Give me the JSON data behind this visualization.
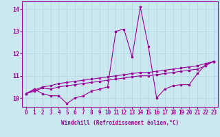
{
  "xlabel": "Windchill (Refroidissement éolien,°C)",
  "background_color": "#cbe8f0",
  "line_color": "#990099",
  "x": [
    0,
    1,
    2,
    3,
    4,
    5,
    6,
    7,
    8,
    9,
    10,
    11,
    12,
    13,
    14,
    15,
    16,
    17,
    18,
    19,
    20,
    21,
    22,
    23
  ],
  "line1": [
    10.2,
    10.4,
    10.2,
    10.1,
    10.1,
    9.75,
    10.0,
    10.1,
    10.3,
    10.4,
    10.5,
    13.0,
    13.1,
    11.85,
    14.1,
    12.3,
    10.0,
    10.4,
    10.55,
    10.6,
    10.6,
    11.1,
    11.5,
    11.65
  ],
  "line2": [
    10.2,
    10.3,
    10.45,
    10.4,
    10.5,
    10.55,
    10.6,
    10.65,
    10.7,
    10.75,
    10.8,
    10.85,
    10.9,
    10.95,
    11.0,
    11.0,
    11.05,
    11.1,
    11.15,
    11.2,
    11.25,
    11.3,
    11.45,
    11.65
  ],
  "line3": [
    10.2,
    10.35,
    10.5,
    10.55,
    10.65,
    10.7,
    10.75,
    10.8,
    10.85,
    10.9,
    10.95,
    11.0,
    11.05,
    11.1,
    11.15,
    11.15,
    11.2,
    11.25,
    11.3,
    11.35,
    11.4,
    11.45,
    11.55,
    11.65
  ],
  "ylim": [
    9.6,
    14.35
  ],
  "xlim": [
    -0.5,
    23.5
  ],
  "yticks": [
    10,
    11,
    12,
    13,
    14
  ],
  "xticks": [
    0,
    1,
    2,
    3,
    4,
    5,
    6,
    7,
    8,
    9,
    10,
    11,
    12,
    13,
    14,
    15,
    16,
    17,
    18,
    19,
    20,
    21,
    22,
    23
  ],
  "grid_color": "#b0d8e0",
  "tick_label_color": "#990099",
  "xlabel_fontsize": 5.5,
  "tick_fontsize": 5.5,
  "marker_size": 2.0,
  "line_width": 0.8
}
